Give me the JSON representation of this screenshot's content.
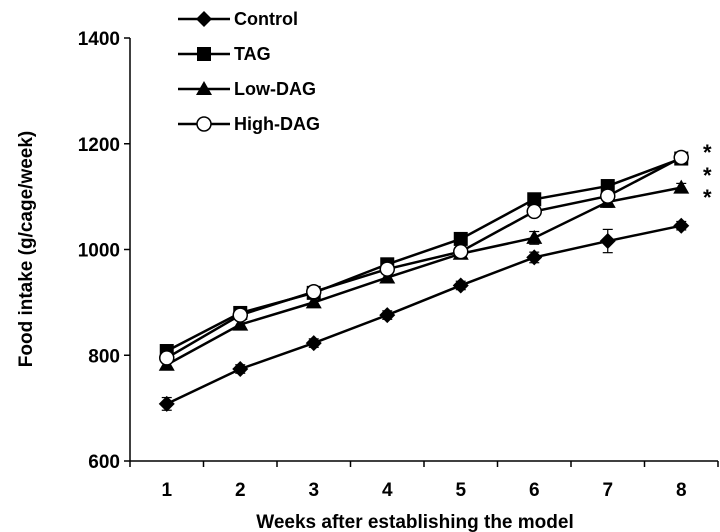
{
  "chart_data": {
    "type": "line",
    "xlabel": "Weeks after establishing the model",
    "ylabel": "Food intake (g/cage/week)",
    "x": [
      1,
      2,
      3,
      4,
      5,
      6,
      7,
      8
    ],
    "xlim": [
      0.5,
      8.5
    ],
    "ylim": [
      600,
      1400
    ],
    "yticks": [
      600,
      800,
      1000,
      1200,
      1400
    ],
    "legend_position": "top-left",
    "series": [
      {
        "name": "Control",
        "marker": "diamond",
        "values": [
          708,
          774,
          823,
          876,
          932,
          985,
          1016,
          1045
        ],
        "errors": [
          12,
          8,
          8,
          8,
          8,
          10,
          22,
          8
        ]
      },
      {
        "name": "TAG",
        "marker": "square",
        "values": [
          808,
          880,
          918,
          972,
          1020,
          1095,
          1120,
          1172
        ],
        "errors": [
          8,
          8,
          8,
          8,
          8,
          8,
          8,
          8
        ]
      },
      {
        "name": "Low-DAG",
        "marker": "triangle",
        "values": [
          782,
          858,
          900,
          947,
          992,
          1022,
          1090,
          1117
        ],
        "errors": [
          8,
          8,
          8,
          8,
          8,
          12,
          10,
          8
        ]
      },
      {
        "name": "High-DAG",
        "marker": "open-circle",
        "values": [
          795,
          876,
          920,
          963,
          996,
          1072,
          1101,
          1174
        ],
        "errors": [
          8,
          8,
          8,
          8,
          8,
          8,
          8,
          8
        ]
      }
    ],
    "significance": [
      "*",
      "*",
      "*"
    ]
  }
}
